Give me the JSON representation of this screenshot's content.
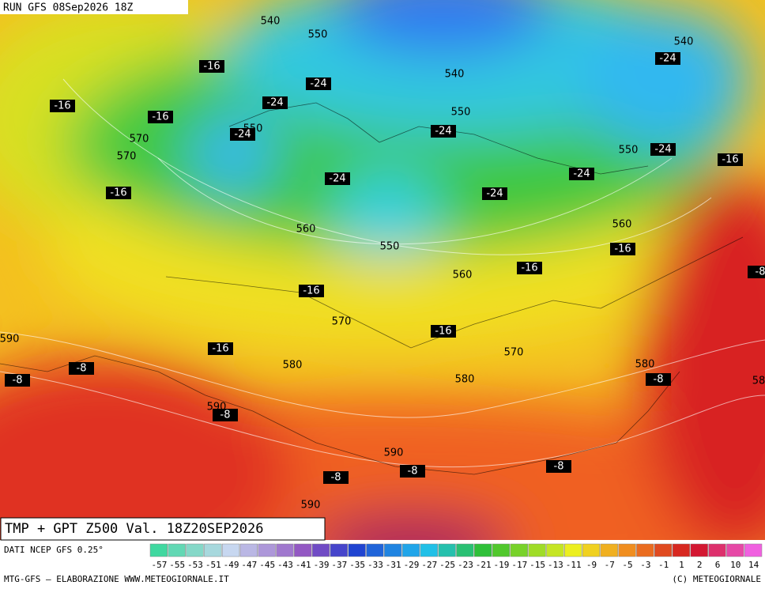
{
  "header": {
    "run": "RUN GFS 08Sep2026 18Z",
    "title": "TMP + GPT Z500 Val. 18Z20SEP2026"
  },
  "map": {
    "geopotential_labels": [
      540,
      550,
      540,
      550,
      540,
      550,
      570,
      570,
      550,
      560,
      560,
      550,
      560,
      570,
      590,
      570,
      580,
      580,
      580,
      590,
      590,
      590,
      "58"
    ],
    "temperature_labels": [
      -16,
      -16,
      -16,
      -24,
      -24,
      -24,
      -24,
      -24,
      -24,
      -16,
      -24,
      -24,
      -24,
      -16,
      -16,
      -16,
      -16,
      -16,
      -16,
      -8,
      -8,
      -8,
      -8,
      -8,
      -8,
      -8,
      "-8"
    ]
  },
  "legend": {
    "source": "DATI NCEP GFS 0.25°",
    "labels": [
      -57,
      -55,
      -53,
      -51,
      -49,
      -47,
      -45,
      -43,
      -41,
      -39,
      -37,
      -35,
      -33,
      -31,
      -29,
      -27,
      -25,
      -23,
      -21,
      -19,
      -17,
      -15,
      -13,
      -11,
      -9,
      -7,
      -5,
      -3,
      -1,
      1,
      2,
      6,
      10,
      14
    ]
  },
  "footer": {
    "left": "MTG-GFS — ELABORAZIONE WWW.METEOGIORNALE.IT",
    "right": "(C) METEOGIORNALE"
  }
}
